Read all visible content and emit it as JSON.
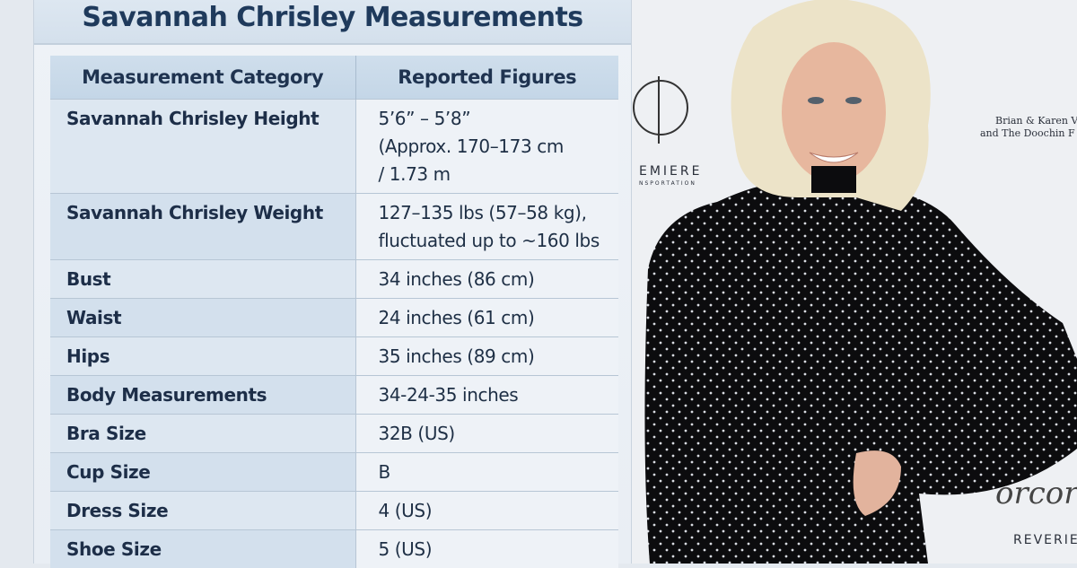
{
  "title": "Savannah Chrisley Measurements",
  "table": {
    "headers": [
      "Measurement Category",
      "Reported Figures"
    ],
    "rows": [
      {
        "category": "Savannah Chrisley Height",
        "value": [
          "5’6” – 5’8”",
          "(Approx. 170–173 cm",
          "/ 1.73 m"
        ]
      },
      {
        "category": "Savannah Chrisley Weight",
        "value": [
          "127–135 lbs (57–58 kg),",
          "fluctuated up to ~160 lbs"
        ]
      },
      {
        "category": "Bust",
        "value": [
          "34 inches (86 cm)"
        ]
      },
      {
        "category": "Waist",
        "value": [
          "24 inches (61 cm)"
        ]
      },
      {
        "category": "Hips",
        "value": [
          "35 inches (89 cm)"
        ]
      },
      {
        "category": "Body Measurements",
        "value": [
          "34-24-35 inches"
        ]
      },
      {
        "category": "Bra Size",
        "value": [
          "32B (US)"
        ]
      },
      {
        "category": "Cup Size",
        "value": [
          "B"
        ]
      },
      {
        "category": "Dress Size",
        "value": [
          "4 (US)"
        ]
      },
      {
        "category": "Shoe Size",
        "value": [
          "5 (US)"
        ]
      }
    ]
  },
  "photo": {
    "backdrop_logos": [
      "EMIERE",
      "NSPORTATION",
      "Brian & Karen V",
      "and The Doochin F",
      "REVERIE",
      "orcor"
    ]
  }
}
